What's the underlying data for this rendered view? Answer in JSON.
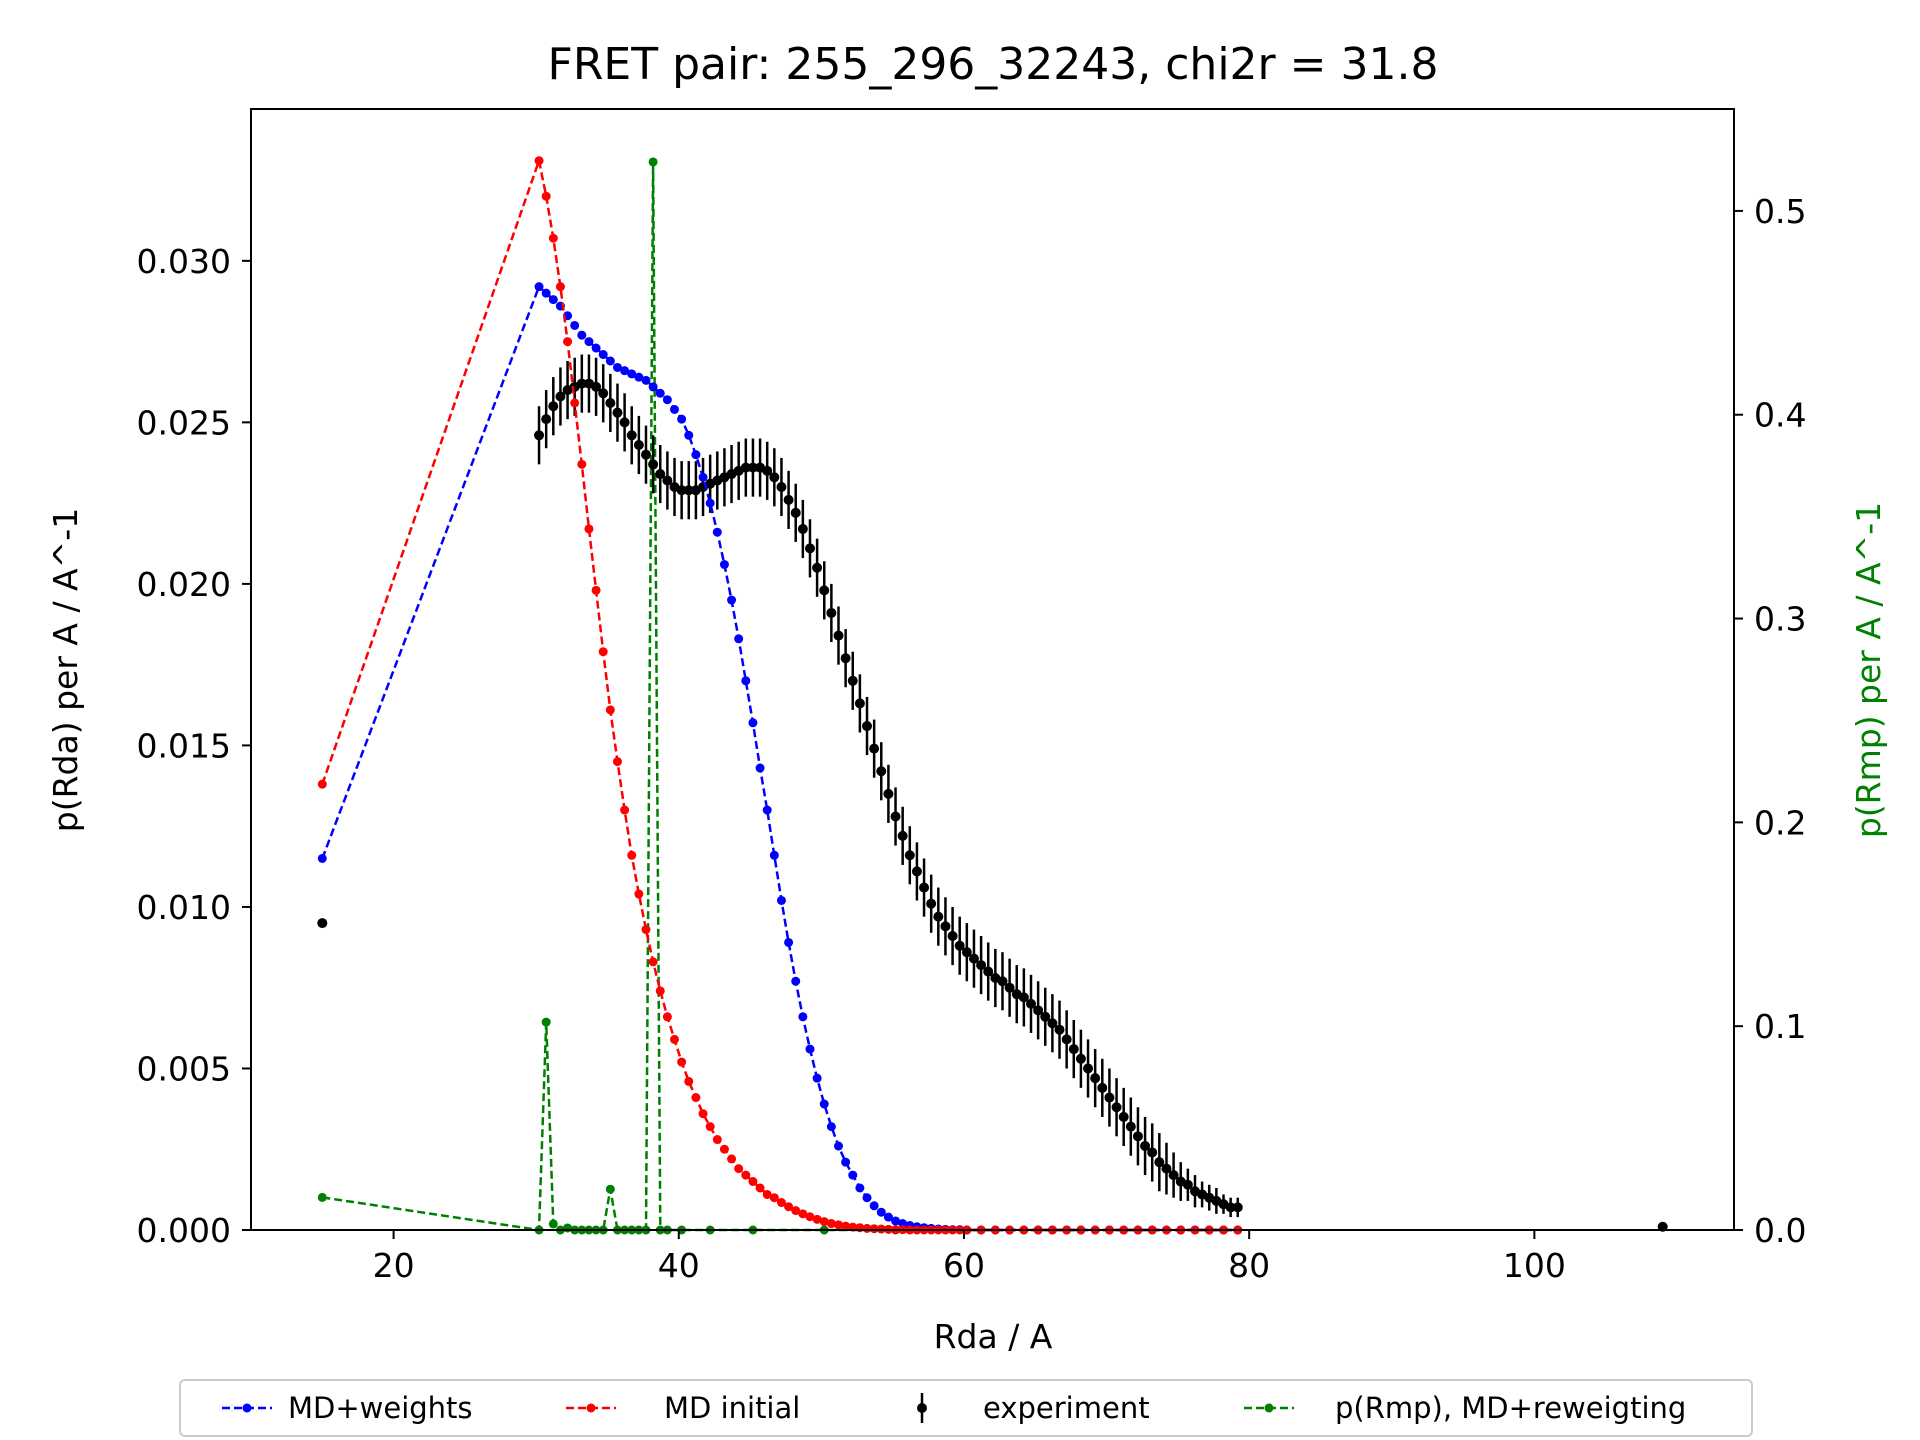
{
  "chart_data": {
    "type": "line",
    "title": "FRET pair: 255_296_32243, chi2r = 31.8",
    "xlabel": "Rda / A",
    "ylabel": "p(Rda) per A / A^-1",
    "y2label": "p(Rmp) per A / A^-1",
    "xlim": [
      10,
      114
    ],
    "ylim": [
      0,
      0.0347
    ],
    "y2lim": [
      0,
      0.55
    ],
    "x_ticks": [
      20,
      40,
      60,
      80,
      100
    ],
    "x_tick_labels": [
      "20",
      "40",
      "60",
      "80",
      "100"
    ],
    "y_ticks": [
      0,
      0.005,
      0.01,
      0.015,
      0.02,
      0.025,
      0.03
    ],
    "y_tick_labels": [
      "0.000",
      "0.005",
      "0.010",
      "0.015",
      "0.020",
      "0.025",
      "0.030"
    ],
    "y2_ticks": [
      0,
      0.1,
      0.2,
      0.3,
      0.4,
      0.5
    ],
    "y2_tick_labels": [
      "0.0",
      "0.1",
      "0.2",
      "0.3",
      "0.4",
      "0.5"
    ],
    "grid": false,
    "legend_position": "bottom-outside",
    "colors": {
      "md_weights": "#0000ff",
      "md_initial": "#ff0000",
      "experiment": "#000000",
      "rmp": "#008000",
      "y2_label": "#008000"
    },
    "series": [
      {
        "name": "MD+weights",
        "axis": "left",
        "style": "dashed-dots",
        "x": [
          15,
          30.2,
          30.7,
          31.2,
          31.7,
          32.2,
          32.7,
          33.2,
          33.7,
          34.2,
          34.7,
          35.2,
          35.7,
          36.2,
          36.7,
          37.2,
          37.7,
          38.2,
          38.7,
          39.2,
          39.7,
          40.2,
          40.7,
          41.2,
          41.7,
          42.2,
          42.7,
          43.2,
          43.7,
          44.2,
          44.7,
          45.2,
          45.7,
          46.2,
          46.7,
          47.2,
          47.7,
          48.2,
          48.7,
          49.2,
          49.7,
          50.2,
          50.7,
          51.2,
          51.7,
          52.2,
          52.7,
          53.2,
          53.7,
          54.2,
          54.7,
          55.2,
          55.7,
          56.2,
          56.7,
          57.2,
          57.7,
          58.2,
          58.7,
          59.2,
          59.7,
          60.2,
          61.2,
          62.2,
          63.2,
          64.2,
          65.2,
          66.2,
          67.2,
          68.2,
          69.2,
          70.2,
          71.2,
          72.2,
          73.2,
          74.2,
          75.2,
          76.2,
          77.2,
          78.2,
          79.2
        ],
        "values": [
          0.0115,
          0.0292,
          0.029,
          0.0288,
          0.0286,
          0.0283,
          0.028,
          0.0277,
          0.0275,
          0.0273,
          0.0271,
          0.0269,
          0.0267,
          0.0266,
          0.0265,
          0.0264,
          0.0263,
          0.0261,
          0.0259,
          0.0257,
          0.0254,
          0.0251,
          0.0246,
          0.024,
          0.0233,
          0.0225,
          0.0216,
          0.0206,
          0.0195,
          0.0183,
          0.017,
          0.0157,
          0.0143,
          0.013,
          0.0116,
          0.0102,
          0.0089,
          0.0077,
          0.0066,
          0.0056,
          0.0047,
          0.0039,
          0.0032,
          0.0026,
          0.0021,
          0.0017,
          0.0013,
          0.001,
          0.00075,
          0.00055,
          0.0004,
          0.00028,
          0.0002,
          0.00014,
          0.0001,
          7e-05,
          5e-05,
          3e-05,
          2e-05,
          1e-05,
          1e-05,
          0.0,
          0.0,
          0.0,
          0.0,
          0.0,
          0.0,
          0.0,
          0.0,
          0.0,
          0.0,
          0.0,
          0.0,
          0.0,
          0.0,
          0.0,
          0.0,
          0.0,
          0.0,
          0.0,
          0.0
        ]
      },
      {
        "name": "MD initial",
        "axis": "left",
        "style": "dashed-dots",
        "x": [
          15,
          30.2,
          30.7,
          31.2,
          31.7,
          32.2,
          32.7,
          33.2,
          33.7,
          34.2,
          34.7,
          35.2,
          35.7,
          36.2,
          36.7,
          37.2,
          37.7,
          38.2,
          38.7,
          39.2,
          39.7,
          40.2,
          40.7,
          41.2,
          41.7,
          42.2,
          42.7,
          43.2,
          43.7,
          44.2,
          44.7,
          45.2,
          45.7,
          46.2,
          46.7,
          47.2,
          47.7,
          48.2,
          48.7,
          49.2,
          49.7,
          50.2,
          50.7,
          51.2,
          51.7,
          52.2,
          52.7,
          53.2,
          53.7,
          54.2,
          54.7,
          55.2,
          55.7,
          56.2,
          56.7,
          57.2,
          57.7,
          58.2,
          58.7,
          59.2,
          59.7,
          60.2,
          61.2,
          62.2,
          63.2,
          64.2,
          65.2,
          66.2,
          67.2,
          68.2,
          69.2,
          70.2,
          71.2,
          72.2,
          73.2,
          74.2,
          75.2,
          76.2,
          77.2,
          78.2,
          79.2
        ],
        "values": [
          0.0138,
          0.0331,
          0.032,
          0.0307,
          0.0292,
          0.0275,
          0.0256,
          0.0237,
          0.0217,
          0.0198,
          0.0179,
          0.0161,
          0.0145,
          0.013,
          0.0116,
          0.0104,
          0.0093,
          0.0083,
          0.0074,
          0.0066,
          0.0059,
          0.0052,
          0.0046,
          0.0041,
          0.0036,
          0.0032,
          0.0028,
          0.0025,
          0.0022,
          0.0019,
          0.0017,
          0.0015,
          0.0013,
          0.0011,
          0.001,
          0.00085,
          0.00072,
          0.0006,
          0.0005,
          0.00041,
          0.00033,
          0.00026,
          0.0002,
          0.00016,
          0.00012,
          9e-05,
          7e-05,
          5e-05,
          4e-05,
          3e-05,
          2e-05,
          1e-05,
          1e-05,
          0.0,
          0.0,
          0.0,
          0.0,
          0.0,
          0.0,
          0.0,
          0.0,
          0.0,
          0.0,
          0.0,
          0.0,
          0.0,
          0.0,
          0.0,
          0.0,
          0.0,
          0.0,
          0.0,
          0.0,
          0.0,
          0.0,
          0.0,
          0.0,
          0.0,
          0.0,
          0.0,
          0.0
        ]
      },
      {
        "name": "experiment",
        "axis": "left",
        "style": "errorbar",
        "x": [
          15,
          30.2,
          30.7,
          31.2,
          31.7,
          32.2,
          32.7,
          33.2,
          33.7,
          34.2,
          34.7,
          35.2,
          35.7,
          36.2,
          36.7,
          37.2,
          37.7,
          38.2,
          38.7,
          39.2,
          39.7,
          40.2,
          40.7,
          41.2,
          41.7,
          42.2,
          42.7,
          43.2,
          43.7,
          44.2,
          44.7,
          45.2,
          45.7,
          46.2,
          46.7,
          47.2,
          47.7,
          48.2,
          48.7,
          49.2,
          49.7,
          50.2,
          50.7,
          51.2,
          51.7,
          52.2,
          52.7,
          53.2,
          53.7,
          54.2,
          54.7,
          55.2,
          55.7,
          56.2,
          56.7,
          57.2,
          57.7,
          58.2,
          58.7,
          59.2,
          59.7,
          60.2,
          60.7,
          61.2,
          61.7,
          62.2,
          62.7,
          63.2,
          63.7,
          64.2,
          64.7,
          65.2,
          65.7,
          66.2,
          66.7,
          67.2,
          67.7,
          68.2,
          68.7,
          69.2,
          69.7,
          70.2,
          70.7,
          71.2,
          71.7,
          72.2,
          72.7,
          73.2,
          73.7,
          74.2,
          74.7,
          75.2,
          75.7,
          76.2,
          76.7,
          77.2,
          77.7,
          78.2,
          78.7,
          79.2,
          109
        ],
        "values": [
          0.0095,
          0.0246,
          0.0251,
          0.0255,
          0.0258,
          0.026,
          0.0261,
          0.0262,
          0.0262,
          0.0261,
          0.0259,
          0.0256,
          0.0253,
          0.025,
          0.0246,
          0.0243,
          0.024,
          0.0237,
          0.0234,
          0.0232,
          0.023,
          0.0229,
          0.0229,
          0.0229,
          0.023,
          0.0231,
          0.0232,
          0.0233,
          0.0234,
          0.0235,
          0.0236,
          0.0236,
          0.0236,
          0.0235,
          0.0233,
          0.023,
          0.0226,
          0.0222,
          0.0217,
          0.0211,
          0.0205,
          0.0198,
          0.0191,
          0.0184,
          0.0177,
          0.017,
          0.0163,
          0.0156,
          0.0149,
          0.0142,
          0.0135,
          0.0128,
          0.0122,
          0.0116,
          0.0111,
          0.0106,
          0.0101,
          0.0097,
          0.0094,
          0.0091,
          0.0088,
          0.0086,
          0.0084,
          0.0082,
          0.008,
          0.0078,
          0.0077,
          0.0075,
          0.0073,
          0.0072,
          0.007,
          0.0068,
          0.0066,
          0.0064,
          0.0062,
          0.0059,
          0.0056,
          0.0053,
          0.005,
          0.0047,
          0.0044,
          0.0041,
          0.0038,
          0.0035,
          0.0032,
          0.0029,
          0.0026,
          0.0024,
          0.0021,
          0.0019,
          0.0017,
          0.0015,
          0.0014,
          0.0012,
          0.0011,
          0.001,
          0.0009,
          0.0008,
          0.0007,
          0.0007,
          0.0001
        ],
        "errors": [
          0.0,
          0.0009,
          0.0009,
          0.0009,
          0.0009,
          0.0009,
          0.0009,
          0.0009,
          0.0009,
          0.0009,
          0.0009,
          0.0009,
          0.0009,
          0.0009,
          0.0009,
          0.0009,
          0.0009,
          0.0009,
          0.0009,
          0.0009,
          0.0009,
          0.0009,
          0.0009,
          0.0009,
          0.0009,
          0.0009,
          0.0009,
          0.0009,
          0.0009,
          0.0009,
          0.0009,
          0.0009,
          0.0009,
          0.0009,
          0.0009,
          0.0009,
          0.0009,
          0.0009,
          0.0009,
          0.0009,
          0.0009,
          0.0009,
          0.0009,
          0.0009,
          0.0009,
          0.0009,
          0.0009,
          0.0009,
          0.0009,
          0.0009,
          0.0009,
          0.0009,
          0.0009,
          0.0009,
          0.0009,
          0.0009,
          0.0009,
          0.0009,
          0.0009,
          0.0009,
          0.0009,
          0.0009,
          0.0009,
          0.0009,
          0.0009,
          0.0009,
          0.0009,
          0.0009,
          0.0009,
          0.0009,
          0.0009,
          0.0009,
          0.0009,
          0.0009,
          0.0009,
          0.0009,
          0.0009,
          0.0009,
          0.0009,
          0.0009,
          0.0009,
          0.0009,
          0.0009,
          0.0009,
          0.0009,
          0.0009,
          0.0009,
          0.0009,
          0.0009,
          0.0008,
          0.0007,
          0.0006,
          0.0005,
          0.0005,
          0.0004,
          0.0004,
          0.0004,
          0.0003,
          0.0003,
          0.0003,
          0.0
        ]
      },
      {
        "name": "p(Rmp), MD+reweigting",
        "axis": "right",
        "style": "dashed-dots",
        "x": [
          15,
          30.2,
          30.7,
          31.2,
          31.7,
          32.2,
          32.7,
          33.2,
          33.7,
          34.2,
          34.7,
          35.2,
          35.7,
          36.2,
          36.7,
          37.2,
          37.7,
          38.2,
          38.7,
          39.2,
          40.2,
          42.2,
          45.2,
          50.2,
          55.2,
          60.2,
          65.2,
          70.2,
          75.2,
          79.2
        ],
        "values": [
          0.016,
          0.0,
          0.102,
          0.003,
          0.0,
          0.001,
          0.0,
          0.0,
          0.0,
          0.0,
          0.0,
          0.02,
          0.0,
          0.0,
          0.0,
          0.0,
          0.0,
          0.524,
          0.0,
          0.0,
          0.0,
          0.0,
          0.0,
          0.0,
          0.0,
          0.0,
          0.0,
          0.0,
          0.0,
          0.0
        ]
      }
    ]
  }
}
